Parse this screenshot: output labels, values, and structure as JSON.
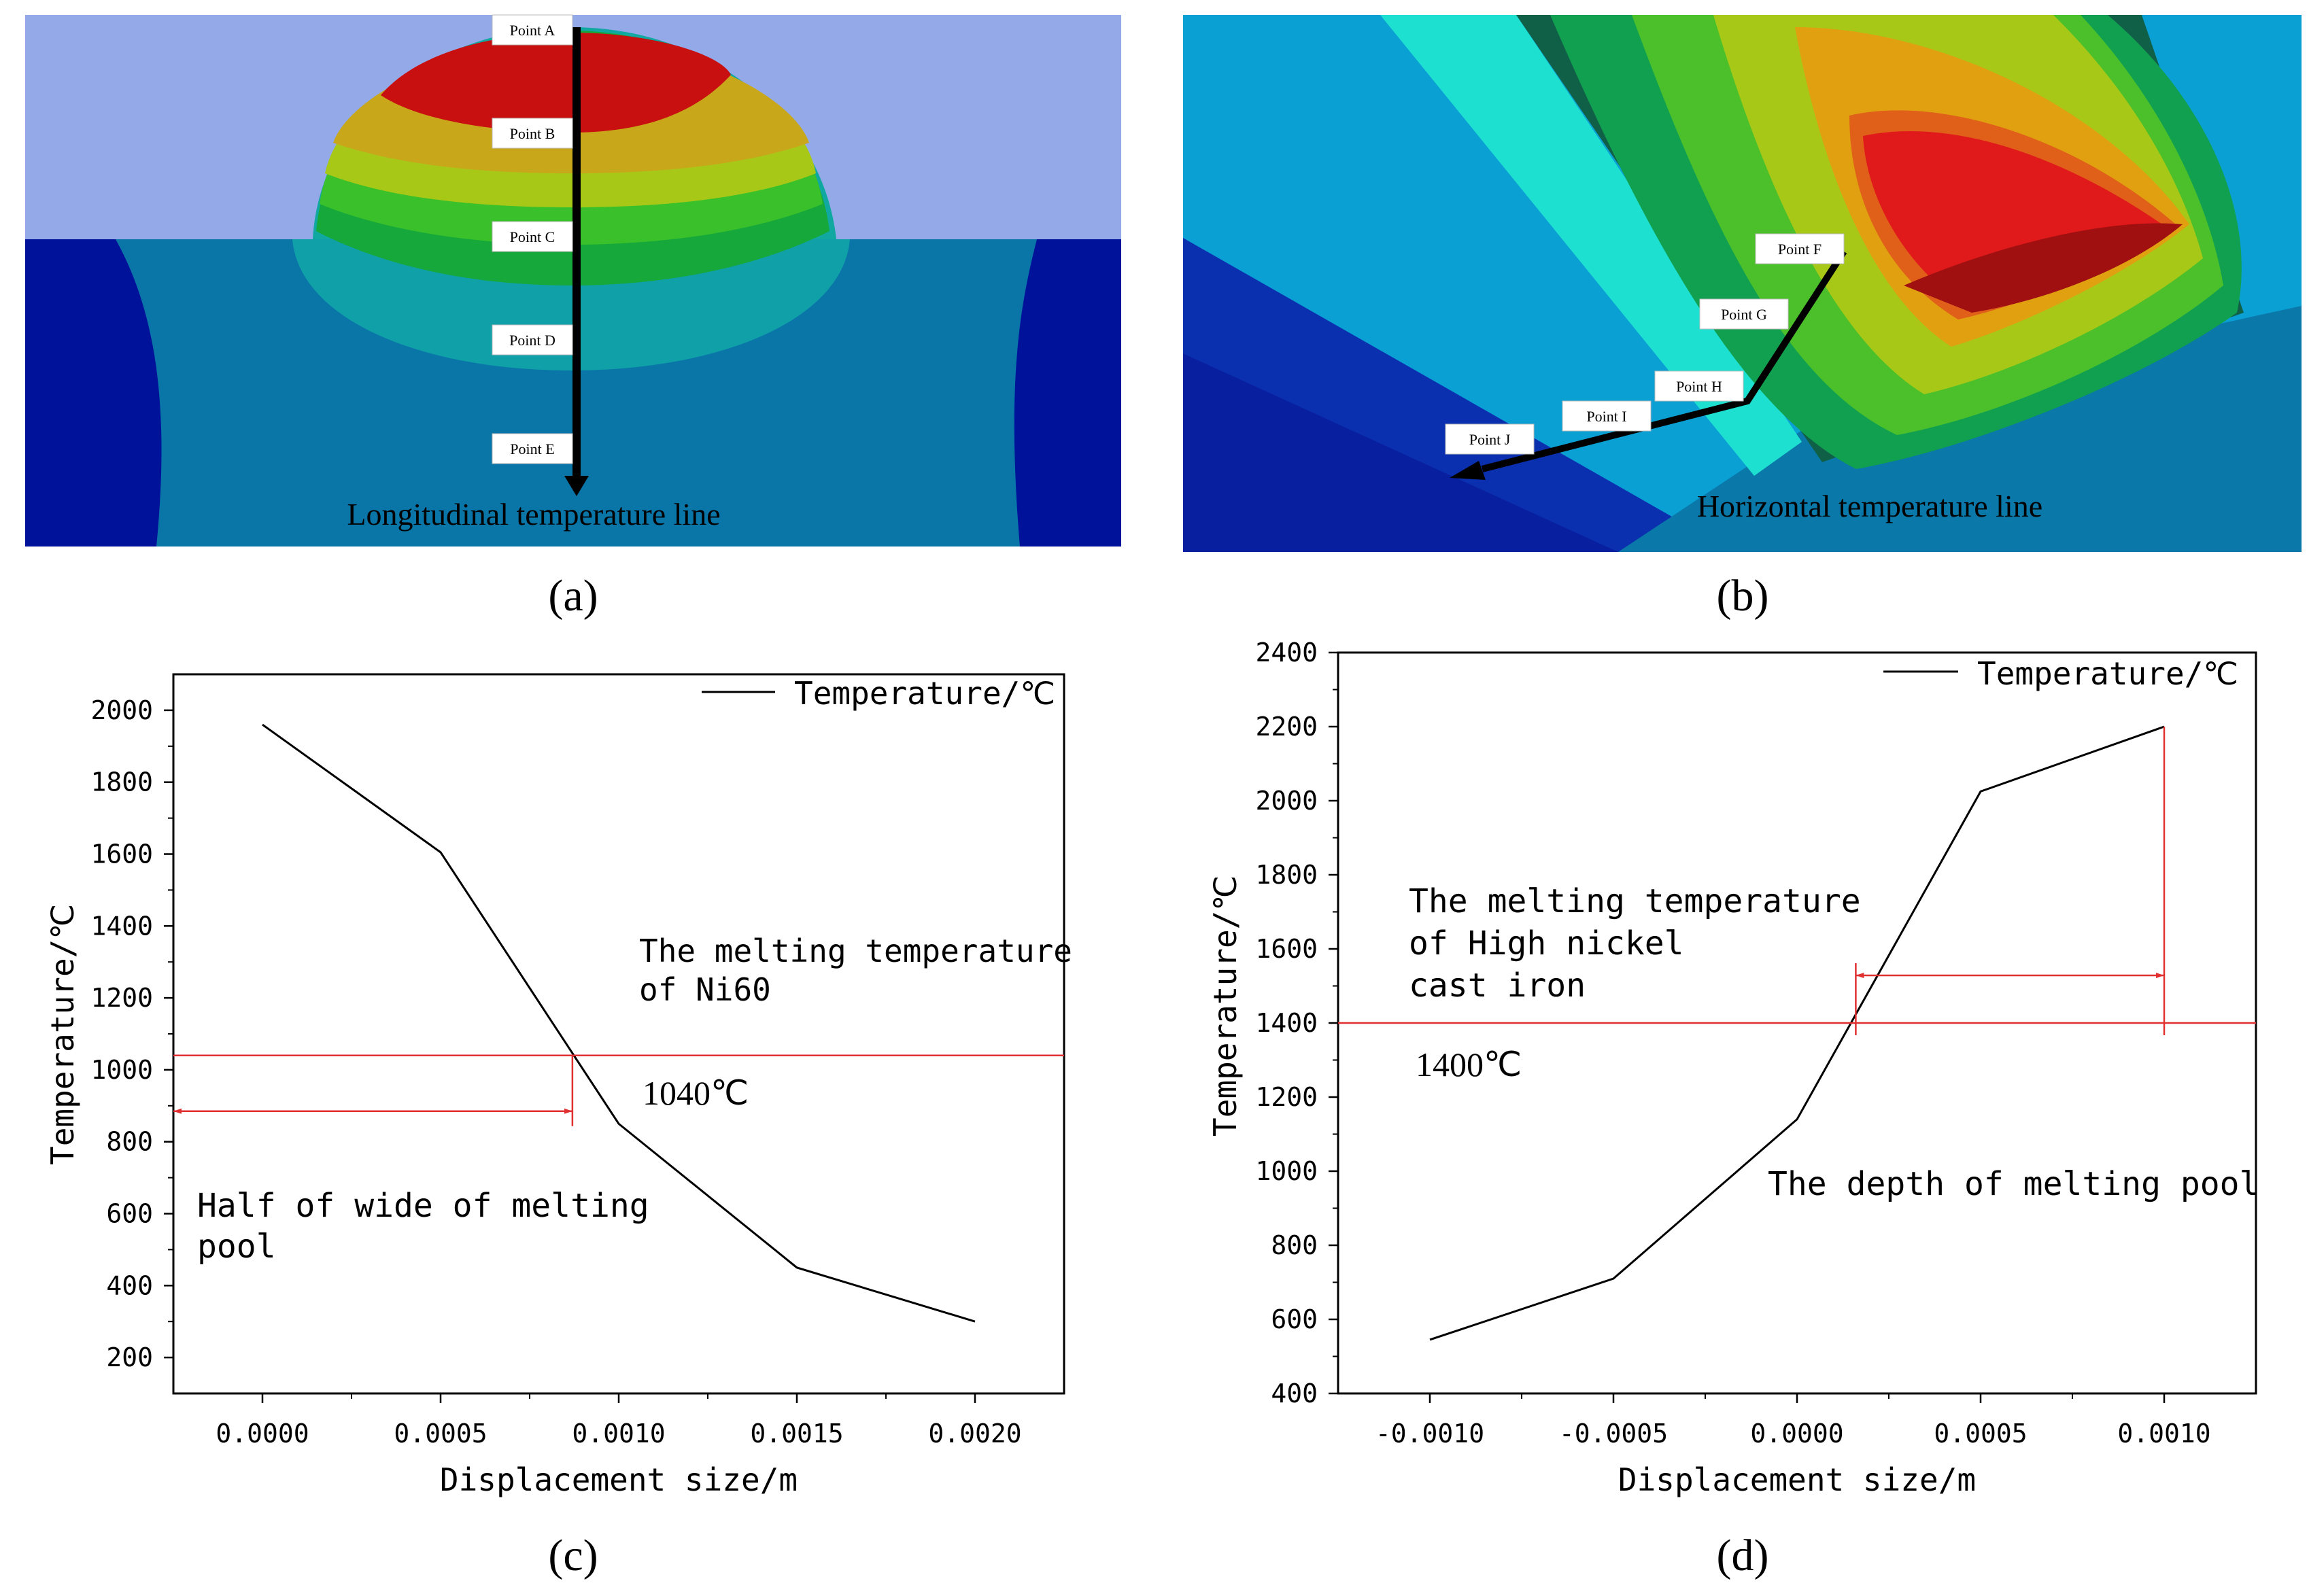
{
  "panel_a": {
    "label": "(a)",
    "caption": "Longitudinal temperature line",
    "points": [
      "Point A",
      "Point B",
      "Point C",
      "Point D",
      "Point E"
    ]
  },
  "panel_b": {
    "label": "(b)",
    "caption": "Horizontal temperature line",
    "points": [
      "Point F",
      "Point G",
      "Point H",
      "Point I",
      "Point J"
    ]
  },
  "panel_c": {
    "label": "(c)",
    "annotation_melt": [
      "The melting temperature",
      "of Ni60"
    ],
    "annotation_temp": "1040℃",
    "annotation_half": [
      "Half of wide of melting",
      "pool"
    ]
  },
  "panel_d": {
    "label": "(d)",
    "annotation_melt": [
      "The melting temperature",
      "of High nickel",
      "cast iron"
    ],
    "annotation_temp": "1400℃",
    "annotation_depth": "The depth of melting pool"
  },
  "colors": {
    "line": "#000000",
    "reference": "#e03030"
  },
  "chart_data": [
    {
      "type": "line",
      "panel": "c",
      "xlabel": "Displacement size/m",
      "ylabel": "Temperature/℃",
      "legend": "Temperature/℃",
      "legend_position": "top-right",
      "x": [
        0.0,
        0.0005,
        0.001,
        0.0015,
        0.002
      ],
      "y": [
        1960,
        1605,
        850,
        450,
        300
      ],
      "xlim": [
        -0.00025,
        0.00225
      ],
      "ylim": [
        100,
        2100
      ],
      "xticks": [
        0.0,
        0.0005,
        0.001,
        0.0015,
        0.002
      ],
      "xtick_labels": [
        "0.0000",
        "0.0005",
        "0.0010",
        "0.0015",
        "0.0020"
      ],
      "yticks": [
        200,
        400,
        600,
        800,
        1000,
        1200,
        1400,
        1600,
        1800,
        2000
      ],
      "reference_y": 1040,
      "span_x": [
        -0.00025,
        0.00087
      ]
    },
    {
      "type": "line",
      "panel": "d",
      "xlabel": "Displacement size/m",
      "ylabel": "Temperature/℃",
      "legend": "Temperature/℃",
      "legend_position": "top-right",
      "x": [
        -0.001,
        -0.0005,
        0.0,
        0.0005,
        0.001
      ],
      "y": [
        545,
        710,
        1140,
        2025,
        2200
      ],
      "xlim": [
        -0.00125,
        0.00125
      ],
      "ylim": [
        400,
        2400
      ],
      "xticks": [
        -0.001,
        -0.0005,
        0.0,
        0.0005,
        0.001
      ],
      "xtick_labels": [
        "-0.0010",
        "-0.0005",
        "0.0000",
        "0.0005",
        "0.0010"
      ],
      "yticks": [
        400,
        600,
        800,
        1000,
        1200,
        1400,
        1600,
        1800,
        2000,
        2200,
        2400
      ],
      "reference_y": 1400,
      "span_x": [
        0.00016,
        0.001
      ]
    }
  ]
}
